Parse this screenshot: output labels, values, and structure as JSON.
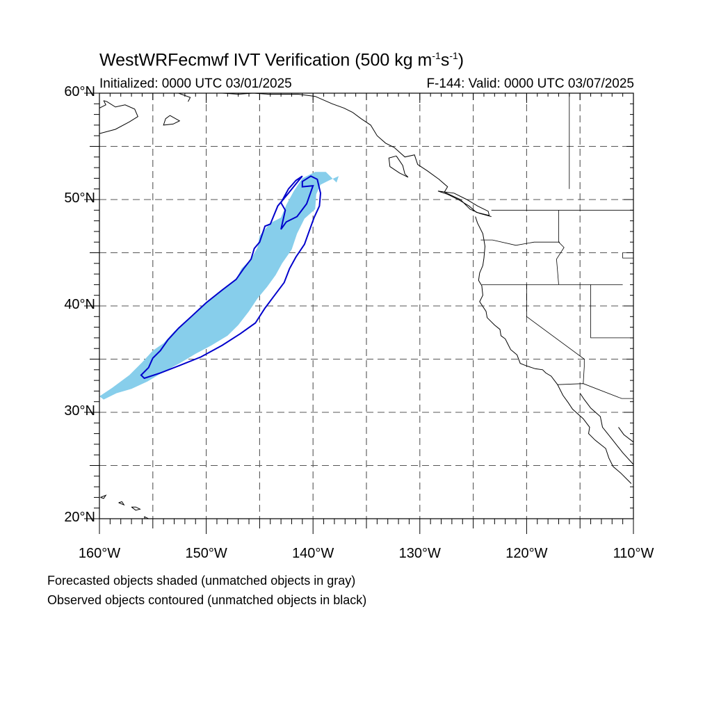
{
  "title": {
    "main": "WestWRFecmwf IVT Verification (500 kg m",
    "sup1": "-1",
    "mid": "s",
    "sup2": "-1",
    "end": ")"
  },
  "subtitle": {
    "left": "Initialized: 0000 UTC 03/01/2025",
    "right": "F-144: Valid: 0000 UTC 03/07/2025"
  },
  "captions": [
    "Forecasted objects shaded (unmatched objects in gray)",
    "Observed objects contoured (unmatched objects in black)"
  ],
  "map": {
    "lon_range": [
      -160,
      -110
    ],
    "lat_range": [
      20,
      60
    ],
    "lat_labels": [
      {
        "lat": 60,
        "text": "60°N"
      },
      {
        "lat": 50,
        "text": "50°N"
      },
      {
        "lat": 40,
        "text": "40°N"
      },
      {
        "lat": 30,
        "text": "30°N"
      },
      {
        "lat": 20,
        "text": "20°N"
      }
    ],
    "lon_labels": [
      {
        "lon": -160,
        "text": "160°W"
      },
      {
        "lon": -150,
        "text": "150°W"
      },
      {
        "lon": -140,
        "text": "140°W"
      },
      {
        "lon": -130,
        "text": "130°W"
      },
      {
        "lon": -120,
        "text": "120°W"
      },
      {
        "lon": -110,
        "text": "110°W"
      }
    ],
    "grid_lons": [
      -155,
      -150,
      -145,
      -140,
      -135,
      -130,
      -125,
      -120,
      -115
    ],
    "grid_lats": [
      25,
      30,
      35,
      40,
      45,
      50,
      55
    ],
    "colors": {
      "forecast_fill": "#87ceeb",
      "observed_contour": "#0000cc",
      "coast": "#000000",
      "grid": "#555555"
    },
    "forecast_object": [
      [
        -159.6,
        31.2
      ],
      [
        -158.4,
        31.8
      ],
      [
        -157.0,
        32.2
      ],
      [
        -155.5,
        32.9
      ],
      [
        -154.0,
        33.8
      ],
      [
        -152.5,
        34.6
      ],
      [
        -151.0,
        35.5
      ],
      [
        -149.5,
        36.3
      ],
      [
        -148.0,
        37.2
      ],
      [
        -147.0,
        38.2
      ],
      [
        -146.0,
        39.5
      ],
      [
        -145.2,
        40.7
      ],
      [
        -144.3,
        41.8
      ],
      [
        -143.5,
        42.9
      ],
      [
        -142.9,
        44.0
      ],
      [
        -142.0,
        45.3
      ],
      [
        -141.5,
        46.8
      ],
      [
        -140.8,
        48.2
      ],
      [
        -139.8,
        49.1
      ],
      [
        -139.7,
        50.5
      ],
      [
        -139.3,
        51.4
      ],
      [
        -138.5,
        51.8
      ],
      [
        -137.6,
        52.2
      ],
      [
        -137.8,
        51.6
      ],
      [
        -138.8,
        52.6
      ],
      [
        -139.8,
        52.6
      ],
      [
        -141.0,
        52.0
      ],
      [
        -141.8,
        50.8
      ],
      [
        -142.5,
        49.5
      ],
      [
        -143.0,
        48.3
      ],
      [
        -144.0,
        47.8
      ],
      [
        -145.0,
        46.6
      ],
      [
        -145.2,
        45.5
      ],
      [
        -145.8,
        44.4
      ],
      [
        -146.7,
        43.5
      ],
      [
        -147.2,
        42.5
      ],
      [
        -148.6,
        41.5
      ],
      [
        -150.2,
        40.2
      ],
      [
        -151.7,
        38.8
      ],
      [
        -153.0,
        37.6
      ],
      [
        -154.0,
        36.5
      ],
      [
        -155.0,
        35.8
      ],
      [
        -156.0,
        34.7
      ],
      [
        -157.2,
        33.5
      ],
      [
        -158.8,
        32.3
      ],
      [
        -160.0,
        31.5
      ]
    ],
    "observed_contour": [
      [
        -155.8,
        33.2
      ],
      [
        -154.3,
        33.7
      ],
      [
        -152.5,
        34.4
      ],
      [
        -150.5,
        35.2
      ],
      [
        -148.5,
        36.3
      ],
      [
        -146.8,
        37.4
      ],
      [
        -145.4,
        38.4
      ],
      [
        -144.5,
        39.8
      ],
      [
        -143.6,
        41.0
      ],
      [
        -142.7,
        42.2
      ],
      [
        -142.2,
        43.5
      ],
      [
        -141.6,
        44.6
      ],
      [
        -140.8,
        45.8
      ],
      [
        -140.3,
        47.2
      ],
      [
        -139.9,
        48.3
      ],
      [
        -139.4,
        49.4
      ],
      [
        -139.3,
        50.6
      ],
      [
        -139.6,
        51.9
      ],
      [
        -140.2,
        52.2
      ],
      [
        -141.0,
        51.7
      ],
      [
        -141.0,
        51.2
      ],
      [
        -140.0,
        51.3
      ],
      [
        -140.6,
        49.6
      ],
      [
        -141.5,
        48.4
      ],
      [
        -142.5,
        47.9
      ],
      [
        -143.0,
        47.2
      ],
      [
        -142.6,
        49.0
      ],
      [
        -143.0,
        49.7
      ],
      [
        -142.3,
        51.0
      ],
      [
        -141.6,
        51.8
      ],
      [
        -141.0,
        52.2
      ],
      [
        -141.5,
        51.6
      ],
      [
        -142.3,
        50.6
      ],
      [
        -143.3,
        49.4
      ],
      [
        -144.0,
        47.7
      ],
      [
        -144.5,
        47.5
      ],
      [
        -145.0,
        46.0
      ],
      [
        -145.5,
        45.4
      ],
      [
        -145.8,
        44.4
      ],
      [
        -146.5,
        43.5
      ],
      [
        -147.2,
        42.5
      ],
      [
        -148.5,
        41.5
      ],
      [
        -150.0,
        40.3
      ],
      [
        -151.4,
        39.0
      ],
      [
        -152.6,
        37.9
      ],
      [
        -153.6,
        36.8
      ],
      [
        -154.3,
        35.8
      ],
      [
        -155.0,
        35.1
      ],
      [
        -155.4,
        34.2
      ],
      [
        -156.1,
        33.5
      ]
    ],
    "coastlines": [
      [
        [
          -160,
          56.2
        ],
        [
          -158.5,
          56.6
        ],
        [
          -157.2,
          57.3
        ],
        [
          -156.4,
          57.8
        ],
        [
          -156.7,
          58.5
        ],
        [
          -157.6,
          58.9
        ],
        [
          -158.5,
          58.7
        ],
        [
          -159.3,
          59.2
        ],
        [
          -159.6,
          59.3
        ]
      ],
      [
        [
          -160,
          58.6
        ],
        [
          -159.4,
          58.9
        ],
        [
          -159.6,
          59.3
        ]
      ],
      [
        [
          -152.6,
          60.0
        ],
        [
          -151.5,
          59.6
        ],
        [
          -151.7,
          59.2
        ]
      ],
      [
        [
          -153.4,
          57.9
        ],
        [
          -152.5,
          57.4
        ],
        [
          -153.1,
          57.1
        ],
        [
          -154.0,
          57.0
        ],
        [
          -153.8,
          57.6
        ],
        [
          -153.4,
          57.9
        ]
      ],
      [
        [
          -148.5,
          60.0
        ],
        [
          -147.0,
          59.9
        ],
        [
          -145.6,
          60.0
        ],
        [
          -144.2,
          59.9
        ],
        [
          -141.4,
          59.9
        ],
        [
          -139.8,
          59.7
        ],
        [
          -138.2,
          59.0
        ],
        [
          -137.1,
          58.6
        ],
        [
          -136.3,
          58.2
        ],
        [
          -135.5,
          57.6
        ],
        [
          -134.6,
          57.0
        ],
        [
          -134.0,
          56.0
        ],
        [
          -133.2,
          55.3
        ],
        [
          -132.4,
          54.9
        ],
        [
          -131.4,
          54.0
        ],
        [
          -130.5,
          54.2
        ],
        [
          -130.2,
          53.3
        ],
        [
          -129.3,
          52.7
        ],
        [
          -128.2,
          51.9
        ],
        [
          -127.4,
          51.2
        ],
        [
          -127.7,
          50.7
        ],
        [
          -126.2,
          50.0
        ],
        [
          -125.3,
          49.1
        ],
        [
          -124.4,
          48.7
        ],
        [
          -123.3,
          48.4
        ]
      ],
      [
        [
          -132.2,
          54.1
        ],
        [
          -131.6,
          53.2
        ],
        [
          -131.4,
          52.4
        ],
        [
          -131.1,
          52.1
        ],
        [
          -131.9,
          52.5
        ],
        [
          -132.8,
          53.1
        ],
        [
          -132.9,
          53.9
        ],
        [
          -132.2,
          54.1
        ]
      ],
      [
        [
          -128.3,
          50.8
        ],
        [
          -127.4,
          50.5
        ],
        [
          -126.4,
          50.0
        ],
        [
          -125.4,
          49.4
        ],
        [
          -124.7,
          48.8
        ],
        [
          -123.5,
          48.5
        ],
        [
          -123.6,
          48.9
        ],
        [
          -124.6,
          49.4
        ],
        [
          -125.6,
          50.0
        ],
        [
          -126.8,
          50.6
        ],
        [
          -128.3,
          50.8
        ]
      ],
      [
        [
          -124.8,
          48.4
        ],
        [
          -124.6,
          47.8
        ],
        [
          -124.1,
          46.8
        ],
        [
          -124.0,
          46.2
        ],
        [
          -123.9,
          45.6
        ],
        [
          -124.0,
          44.5
        ],
        [
          -124.1,
          43.8
        ],
        [
          -124.4,
          43.1
        ],
        [
          -124.5,
          42.4
        ],
        [
          -124.2,
          41.9
        ],
        [
          -124.1,
          41.0
        ],
        [
          -124.4,
          40.4
        ],
        [
          -123.8,
          39.5
        ],
        [
          -123.7,
          38.9
        ],
        [
          -123.0,
          38.2
        ],
        [
          -122.5,
          37.8
        ],
        [
          -122.4,
          37.2
        ],
        [
          -122.0,
          36.9
        ],
        [
          -121.8,
          36.5
        ],
        [
          -121.5,
          35.9
        ],
        [
          -120.9,
          35.4
        ],
        [
          -120.6,
          34.6
        ],
        [
          -120.1,
          34.4
        ],
        [
          -119.2,
          34.1
        ],
        [
          -118.5,
          34.0
        ],
        [
          -118.2,
          33.7
        ],
        [
          -117.7,
          33.4
        ],
        [
          -117.1,
          32.6
        ],
        [
          -116.6,
          31.6
        ],
        [
          -116.1,
          30.9
        ],
        [
          -115.7,
          30.3
        ],
        [
          -114.7,
          29.4
        ],
        [
          -114.1,
          28.6
        ],
        [
          -114.2,
          28.0
        ],
        [
          -113.6,
          27.4
        ],
        [
          -112.6,
          26.6
        ],
        [
          -112.3,
          25.7
        ],
        [
          -111.9,
          24.9
        ],
        [
          -111.2,
          24.3
        ],
        [
          -110.2,
          23.3
        ]
      ],
      [
        [
          -115.0,
          31.8
        ],
        [
          -114.6,
          31.2
        ],
        [
          -114.0,
          30.4
        ],
        [
          -113.1,
          29.6
        ],
        [
          -112.9,
          28.6
        ],
        [
          -112.1,
          27.6
        ],
        [
          -111.0,
          26.2
        ],
        [
          -110.0,
          25.1
        ]
      ],
      [
        [
          -110,
          27.2
        ],
        [
          -110.9,
          27.9
        ],
        [
          -111.4,
          28.6
        ]
      ],
      [
        [
          -159.9,
          22.0
        ],
        [
          -159.4,
          22.2
        ],
        [
          -159.6,
          21.9
        ],
        [
          -159.9,
          22.0
        ]
      ],
      [
        [
          -158.2,
          21.5
        ],
        [
          -157.7,
          21.3
        ],
        [
          -157.9,
          21.6
        ],
        [
          -158.2,
          21.5
        ]
      ],
      [
        [
          -157.0,
          21.1
        ],
        [
          -156.6,
          20.8
        ],
        [
          -156.2,
          20.9
        ],
        [
          -156.6,
          21.1
        ],
        [
          -157.0,
          21.1
        ]
      ],
      [
        [
          -155.8,
          20.2
        ],
        [
          -155.0,
          19.8
        ],
        [
          -154.8,
          19.5
        ],
        [
          -155.5,
          19.3
        ],
        [
          -155.8,
          20.2
        ]
      ]
    ],
    "boundaries": [
      [
        [
          -123.3,
          49.0
        ],
        [
          -110,
          49.0
        ]
      ],
      [
        [
          -124.3,
          46.2
        ],
        [
          -123.2,
          46.2
        ],
        [
          -121.0,
          45.7
        ],
        [
          -119.3,
          46.0
        ],
        [
          -116.9,
          46.0
        ]
      ],
      [
        [
          -117.0,
          49.0
        ],
        [
          -117.0,
          46.0
        ],
        [
          -116.5,
          45.5
        ],
        [
          -117.2,
          44.4
        ],
        [
          -117.0,
          42.0
        ]
      ],
      [
        [
          -124.2,
          42.0
        ],
        [
          -111.0,
          42.0
        ]
      ],
      [
        [
          -120.0,
          42.0
        ],
        [
          -120.0,
          39.0
        ],
        [
          -114.6,
          35.0
        ],
        [
          -114.6,
          34.3
        ],
        [
          -114.7,
          32.7
        ]
      ],
      [
        [
          -114.0,
          42.0
        ],
        [
          -114.0,
          37.0
        ],
        [
          -110,
          37.0
        ]
      ],
      [
        [
          -111.0,
          45.0
        ],
        [
          -111.0,
          44.5
        ],
        [
          -110,
          44.5
        ]
      ],
      [
        [
          -117.1,
          32.6
        ],
        [
          -114.7,
          32.7
        ],
        [
          -111.1,
          31.3
        ],
        [
          -110,
          31.3
        ]
      ],
      [
        [
          -116.0,
          60.0
        ],
        [
          -116.0,
          51.0
        ]
      ]
    ]
  }
}
